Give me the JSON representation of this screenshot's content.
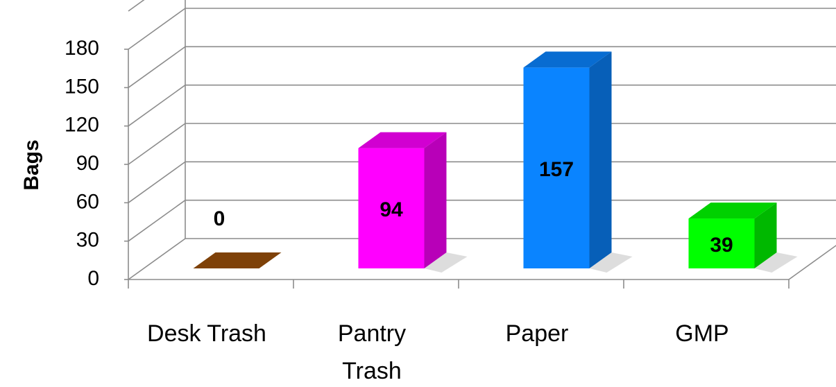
{
  "chart_data": {
    "type": "bar",
    "three_d": true,
    "categories": [
      [
        "Desk Trash"
      ],
      [
        "Pantry",
        "Trash"
      ],
      [
        "Paper"
      ],
      [
        "GMP"
      ]
    ],
    "values": [
      0,
      94,
      157,
      39
    ],
    "data_labels": [
      "0",
      "94",
      "157",
      "39"
    ],
    "colors": [
      "#9a4f0a",
      "#ff00ff",
      "#0a84ff",
      "#00ff00"
    ],
    "ylabel": "Bags",
    "ylim": [
      0,
      180
    ],
    "yticks": [
      0,
      30,
      60,
      90,
      120,
      150,
      180
    ],
    "grid": true,
    "legend": "none"
  }
}
